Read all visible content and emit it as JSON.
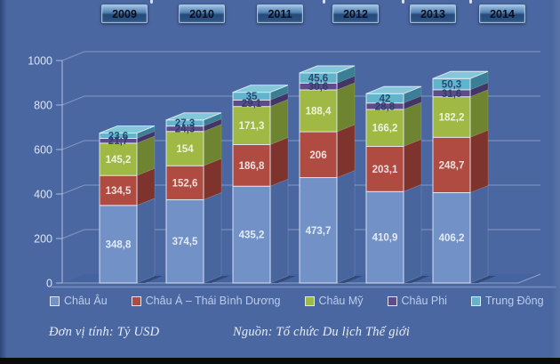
{
  "page": {
    "background_color": "#4b67a1",
    "bottom_bar_color": "#0a0a0a"
  },
  "year_tabs": [
    "2009",
    "2010",
    "2011",
    "2012",
    "2013",
    "2014"
  ],
  "footer": {
    "unit_note": "Đơn vị tính: Tỷ USD",
    "source_note": "Nguồn: Tổ chức Du lịch Thế giới"
  },
  "chart_data": {
    "type": "bar",
    "subtype": "3d-stacked-column",
    "title": "",
    "unit": "Tỷ USD",
    "grid": true,
    "legend_position": "bottom",
    "categories": [
      "2009",
      "2010",
      "2011",
      "2012",
      "2013",
      "2014"
    ],
    "y_axis": {
      "min": 0,
      "max": 1000,
      "step": 200,
      "tick_labels": [
        "0",
        "200",
        "400",
        "600",
        "800",
        "1000"
      ]
    },
    "series": [
      {
        "name": "Châu Âu",
        "color": "#7191c7",
        "side_color": "#48659e",
        "top_color": "#8da8d3",
        "label_color": "#eef2fa",
        "values": [
          348.8,
          374.5,
          435.2,
          473.7,
          410.9,
          406.2
        ],
        "labels": [
          "348,8",
          "374,5",
          "435,2",
          "473,7",
          "410,9",
          "406,2"
        ]
      },
      {
        "name": "Châu Á – Thái Bình Dương",
        "color": "#b04b42",
        "side_color": "#7e332d",
        "top_color": "#c2635b",
        "label_color": "#f6ecea",
        "values": [
          134.5,
          152.6,
          186.8,
          206,
          203.1,
          248.7
        ],
        "labels": [
          "134,5",
          "152,6",
          "186,8",
          "206",
          "203,1",
          "248,7"
        ]
      },
      {
        "name": "Châu Mỹ",
        "color": "#9fb944",
        "side_color": "#6f8430",
        "top_color": "#b5ca63",
        "label_color": "#f5f8ea",
        "values": [
          145.2,
          154,
          171.3,
          188.4,
          166.2,
          182.2
        ],
        "labels": [
          "145,2",
          "154",
          "171,3",
          "188,4",
          "166,2",
          "182,2"
        ]
      },
      {
        "name": "Châu Phi",
        "color": "#5e4b8b",
        "side_color": "#443567",
        "top_color": "#7464a0",
        "label_color": "#283d68",
        "values": [
          21.7,
          24.3,
          29.1,
          30.6,
          28.8,
          31.6
        ],
        "labels": [
          "21,7",
          "24,3",
          "29,1",
          "30,6",
          "28,8",
          "31,6"
        ]
      },
      {
        "name": "Trung Đông",
        "color": "#62b3cc",
        "side_color": "#3a7f95",
        "top_color": "#85c7da",
        "label_color": "#24406e",
        "values": [
          23.6,
          27.3,
          35,
          45.6,
          42,
          50.3
        ],
        "labels": [
          "23,6",
          "27,3",
          "35",
          "45,6",
          "42",
          "50,3"
        ]
      }
    ]
  }
}
